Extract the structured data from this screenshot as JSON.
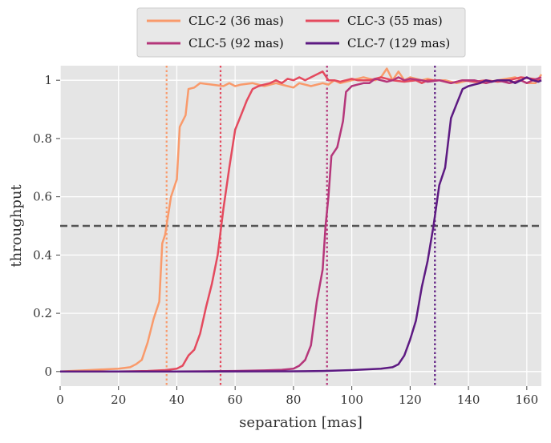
{
  "chart_data": {
    "type": "line",
    "title": "",
    "xlabel": "separation [mas]",
    "ylabel": "throughput",
    "xlim": [
      0,
      165
    ],
    "ylim": [
      -0.05,
      1.05
    ],
    "xticks": [
      0,
      20,
      40,
      60,
      80,
      100,
      120,
      140,
      160
    ],
    "yticks": [
      0,
      0.2,
      0.4,
      0.6,
      0.8,
      1
    ],
    "xtick_labels": [
      "0",
      "20",
      "40",
      "60",
      "80",
      "100",
      "120",
      "140",
      "160"
    ],
    "ytick_labels": [
      "0",
      "0.2",
      "0.4",
      "0.6",
      "0.8",
      "1"
    ],
    "grid": true,
    "legend_position": "top-center",
    "threshold": {
      "y": 0.5,
      "style": "dashed",
      "color": "#555555"
    },
    "series": [
      {
        "name": "CLC-2 (36 mas)",
        "color": "#f99a6b",
        "iwa": 36.5,
        "points": [
          [
            0,
            0
          ],
          [
            10,
            0.005
          ],
          [
            20,
            0.01
          ],
          [
            24,
            0.015
          ],
          [
            26,
            0.025
          ],
          [
            28,
            0.04
          ],
          [
            30,
            0.1
          ],
          [
            32,
            0.18
          ],
          [
            34,
            0.24
          ],
          [
            35,
            0.44
          ],
          [
            36,
            0.47
          ],
          [
            38,
            0.6
          ],
          [
            40,
            0.66
          ],
          [
            41,
            0.84
          ],
          [
            43,
            0.88
          ],
          [
            44,
            0.97
          ],
          [
            46,
            0.975
          ],
          [
            48,
            0.99
          ],
          [
            52,
            0.985
          ],
          [
            56,
            0.98
          ],
          [
            58,
            0.99
          ],
          [
            60,
            0.98
          ],
          [
            62,
            0.985
          ],
          [
            66,
            0.99
          ],
          [
            70,
            0.98
          ],
          [
            74,
            0.99
          ],
          [
            78,
            0.98
          ],
          [
            80,
            0.975
          ],
          [
            82,
            0.99
          ],
          [
            86,
            0.98
          ],
          [
            90,
            0.99
          ],
          [
            92,
            0.985
          ],
          [
            94,
            1.0
          ],
          [
            96,
            0.99
          ],
          [
            100,
            1.0
          ],
          [
            104,
            1.01
          ],
          [
            108,
            1.0
          ],
          [
            110,
            1.01
          ],
          [
            112,
            1.04
          ],
          [
            114,
            1.0
          ],
          [
            116,
            1.03
          ],
          [
            118,
            1.0
          ],
          [
            120,
            1.01
          ],
          [
            124,
            1.0
          ],
          [
            126,
            1.005
          ],
          [
            128,
            1.0
          ],
          [
            132,
            1.0
          ],
          [
            136,
            0.99
          ],
          [
            140,
            1.0
          ],
          [
            144,
            0.99
          ],
          [
            150,
            1.0
          ],
          [
            156,
            1.01
          ],
          [
            160,
            0.99
          ],
          [
            163,
            0.99
          ],
          [
            165,
            1.02
          ]
        ]
      },
      {
        "name": "CLC-3 (55 mas)",
        "color": "#e44a5e",
        "iwa": 55,
        "points": [
          [
            0,
            0
          ],
          [
            20,
            0
          ],
          [
            30,
            0.002
          ],
          [
            36,
            0.005
          ],
          [
            40,
            0.01
          ],
          [
            42,
            0.02
          ],
          [
            44,
            0.055
          ],
          [
            46,
            0.075
          ],
          [
            48,
            0.13
          ],
          [
            50,
            0.22
          ],
          [
            52,
            0.3
          ],
          [
            54,
            0.4
          ],
          [
            56,
            0.56
          ],
          [
            58,
            0.7
          ],
          [
            60,
            0.83
          ],
          [
            62,
            0.88
          ],
          [
            64,
            0.93
          ],
          [
            66,
            0.97
          ],
          [
            68,
            0.98
          ],
          [
            70,
            0.985
          ],
          [
            72,
            0.99
          ],
          [
            74,
            1.0
          ],
          [
            76,
            0.99
          ],
          [
            78,
            1.005
          ],
          [
            80,
            1.0
          ],
          [
            82,
            1.01
          ],
          [
            84,
            1.0
          ],
          [
            86,
            1.01
          ],
          [
            88,
            1.02
          ],
          [
            90,
            1.03
          ],
          [
            92,
            1.0
          ],
          [
            94,
            1.0
          ],
          [
            96,
            0.995
          ],
          [
            98,
            1.0
          ],
          [
            100,
            1.005
          ],
          [
            102,
            1.0
          ],
          [
            106,
            1.0
          ],
          [
            110,
            1.01
          ],
          [
            114,
            1.0
          ],
          [
            118,
            0.995
          ],
          [
            122,
            1.0
          ],
          [
            124,
            0.99
          ],
          [
            126,
            1.0
          ],
          [
            130,
            1.0
          ],
          [
            134,
            0.99
          ],
          [
            138,
            1.0
          ],
          [
            142,
            0.995
          ],
          [
            146,
            1.0
          ],
          [
            150,
            0.995
          ],
          [
            154,
            1.0
          ],
          [
            158,
            1.01
          ],
          [
            162,
            1.005
          ],
          [
            165,
            1.0
          ]
        ]
      },
      {
        "name": "CLC-5 (92 mas)",
        "color": "#b5367a",
        "iwa": 91.5,
        "points": [
          [
            0,
            0
          ],
          [
            40,
            0
          ],
          [
            60,
            0.002
          ],
          [
            70,
            0.004
          ],
          [
            76,
            0.006
          ],
          [
            80,
            0.01
          ],
          [
            82,
            0.02
          ],
          [
            84,
            0.04
          ],
          [
            86,
            0.09
          ],
          [
            88,
            0.24
          ],
          [
            90,
            0.35
          ],
          [
            91,
            0.5
          ],
          [
            92,
            0.6
          ],
          [
            93,
            0.74
          ],
          [
            95,
            0.77
          ],
          [
            97,
            0.86
          ],
          [
            98,
            0.96
          ],
          [
            100,
            0.98
          ],
          [
            102,
            0.985
          ],
          [
            104,
            0.99
          ],
          [
            106,
            0.99
          ],
          [
            108,
            1.005
          ],
          [
            110,
            1.0
          ],
          [
            112,
            0.995
          ],
          [
            114,
            1.0
          ],
          [
            116,
            1.01
          ],
          [
            118,
            1.0
          ],
          [
            120,
            1.005
          ],
          [
            124,
            1.0
          ],
          [
            126,
            0.995
          ],
          [
            130,
            1.0
          ],
          [
            134,
            0.99
          ],
          [
            138,
            1.0
          ],
          [
            142,
            1.0
          ],
          [
            146,
            0.99
          ],
          [
            150,
            1.0
          ],
          [
            154,
            0.99
          ],
          [
            158,
            1.0
          ],
          [
            160,
            0.99
          ],
          [
            162,
            1.0
          ],
          [
            165,
            1.01
          ]
        ]
      },
      {
        "name": "CLC-7 (129 mas)",
        "color": "#5d1a82",
        "iwa": 128.5,
        "points": [
          [
            0,
            0
          ],
          [
            40,
            0
          ],
          [
            80,
            0.001
          ],
          [
            90,
            0.002
          ],
          [
            100,
            0.005
          ],
          [
            110,
            0.01
          ],
          [
            114,
            0.015
          ],
          [
            116,
            0.025
          ],
          [
            118,
            0.055
          ],
          [
            120,
            0.11
          ],
          [
            122,
            0.175
          ],
          [
            124,
            0.29
          ],
          [
            126,
            0.38
          ],
          [
            128,
            0.5
          ],
          [
            130,
            0.64
          ],
          [
            132,
            0.7
          ],
          [
            134,
            0.87
          ],
          [
            136,
            0.92
          ],
          [
            138,
            0.97
          ],
          [
            140,
            0.98
          ],
          [
            142,
            0.985
          ],
          [
            144,
            0.99
          ],
          [
            146,
            1.0
          ],
          [
            148,
            0.995
          ],
          [
            150,
            1.0
          ],
          [
            154,
            1.0
          ],
          [
            156,
            0.99
          ],
          [
            158,
            1.0
          ],
          [
            160,
            1.01
          ],
          [
            162,
            1.0
          ],
          [
            164,
            0.995
          ],
          [
            165,
            1.0
          ]
        ]
      }
    ]
  }
}
